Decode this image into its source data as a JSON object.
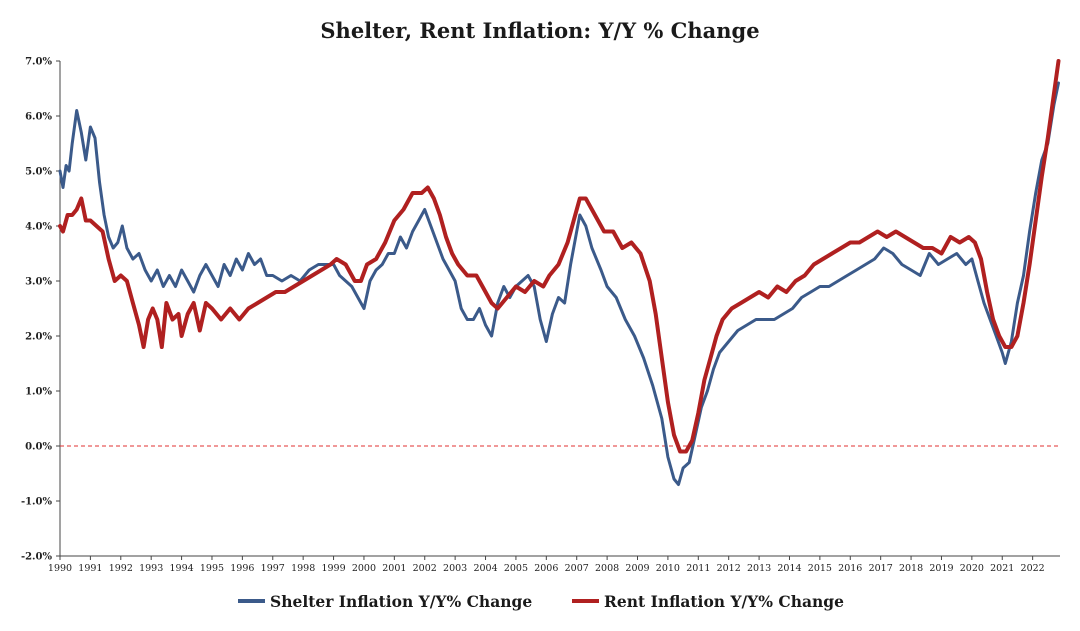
{
  "chart_data": {
    "type": "line",
    "title": "Shelter, Rent Inflation: Y/Y % Change",
    "xlabel": "",
    "ylabel": "",
    "xlim": [
      1990,
      2022.9
    ],
    "ylim": [
      -2.0,
      7.0
    ],
    "y_ticks": [
      7.0,
      6.0,
      5.0,
      4.0,
      3.0,
      2.0,
      1.0,
      0.0,
      -1.0,
      -2.0
    ],
    "y_tick_labels": [
      "7.0%",
      "6.0%",
      "5.0%",
      "4.0%",
      "3.0%",
      "2.0%",
      "1.0%",
      "0.0%",
      "-1.0%",
      "-2.0%"
    ],
    "x_ticks": [
      1990,
      1991,
      1992,
      1993,
      1994,
      1995,
      1996,
      1997,
      1998,
      1999,
      2000,
      2001,
      2002,
      2003,
      2004,
      2005,
      2006,
      2007,
      2008,
      2009,
      2010,
      2011,
      2012,
      2013,
      2014,
      2015,
      2016,
      2017,
      2018,
      2019,
      2020,
      2021,
      2022
    ],
    "x_tick_labels": [
      "1990",
      "1991",
      "1992",
      "1993",
      "1994",
      "1995",
      "1996",
      "1997",
      "1998",
      "1999",
      "2000",
      "2001",
      "2002",
      "2003",
      "2004",
      "2005",
      "2006",
      "2007",
      "2008",
      "2009",
      "2010",
      "2011",
      "2012",
      "2013",
      "2014",
      "2015",
      "2016",
      "2017",
      "2018",
      "2019",
      "2020",
      "2021",
      "2022"
    ],
    "reference_line": {
      "y": 0.0,
      "color": "#e03030",
      "style": "dashed"
    },
    "grid": false,
    "legend_position": "bottom-center",
    "series": [
      {
        "name": "Shelter Inflation Y/Y% Change",
        "color": "#3b5a8a",
        "points": [
          [
            1990.0,
            5.0
          ],
          [
            1990.1,
            4.7
          ],
          [
            1990.2,
            5.1
          ],
          [
            1990.3,
            5.0
          ],
          [
            1990.4,
            5.5
          ],
          [
            1990.55,
            6.1
          ],
          [
            1990.7,
            5.7
          ],
          [
            1990.85,
            5.2
          ],
          [
            1991.0,
            5.8
          ],
          [
            1991.15,
            5.6
          ],
          [
            1991.3,
            4.8
          ],
          [
            1991.45,
            4.2
          ],
          [
            1991.6,
            3.8
          ],
          [
            1991.75,
            3.6
          ],
          [
            1991.9,
            3.7
          ],
          [
            1992.05,
            4.0
          ],
          [
            1992.2,
            3.6
          ],
          [
            1992.4,
            3.4
          ],
          [
            1992.6,
            3.5
          ],
          [
            1992.8,
            3.2
          ],
          [
            1993.0,
            3.0
          ],
          [
            1993.2,
            3.2
          ],
          [
            1993.4,
            2.9
          ],
          [
            1993.6,
            3.1
          ],
          [
            1993.8,
            2.9
          ],
          [
            1994.0,
            3.2
          ],
          [
            1994.2,
            3.0
          ],
          [
            1994.4,
            2.8
          ],
          [
            1994.6,
            3.1
          ],
          [
            1994.8,
            3.3
          ],
          [
            1995.0,
            3.1
          ],
          [
            1995.2,
            2.9
          ],
          [
            1995.4,
            3.3
          ],
          [
            1995.6,
            3.1
          ],
          [
            1995.8,
            3.4
          ],
          [
            1996.0,
            3.2
          ],
          [
            1996.2,
            3.5
          ],
          [
            1996.4,
            3.3
          ],
          [
            1996.6,
            3.4
          ],
          [
            1996.8,
            3.1
          ],
          [
            1997.0,
            3.1
          ],
          [
            1997.3,
            3.0
          ],
          [
            1997.6,
            3.1
          ],
          [
            1997.9,
            3.0
          ],
          [
            1998.2,
            3.2
          ],
          [
            1998.5,
            3.3
          ],
          [
            1998.8,
            3.3
          ],
          [
            1999.0,
            3.3
          ],
          [
            1999.2,
            3.1
          ],
          [
            1999.4,
            3.0
          ],
          [
            1999.6,
            2.9
          ],
          [
            1999.8,
            2.7
          ],
          [
            2000.0,
            2.5
          ],
          [
            2000.2,
            3.0
          ],
          [
            2000.4,
            3.2
          ],
          [
            2000.6,
            3.3
          ],
          [
            2000.8,
            3.5
          ],
          [
            2001.0,
            3.5
          ],
          [
            2001.2,
            3.8
          ],
          [
            2001.4,
            3.6
          ],
          [
            2001.6,
            3.9
          ],
          [
            2001.8,
            4.1
          ],
          [
            2002.0,
            4.3
          ],
          [
            2002.2,
            4.0
          ],
          [
            2002.4,
            3.7
          ],
          [
            2002.6,
            3.4
          ],
          [
            2002.8,
            3.2
          ],
          [
            2003.0,
            3.0
          ],
          [
            2003.2,
            2.5
          ],
          [
            2003.4,
            2.3
          ],
          [
            2003.6,
            2.3
          ],
          [
            2003.8,
            2.5
          ],
          [
            2004.0,
            2.2
          ],
          [
            2004.2,
            2.0
          ],
          [
            2004.4,
            2.6
          ],
          [
            2004.6,
            2.9
          ],
          [
            2004.8,
            2.7
          ],
          [
            2005.0,
            2.9
          ],
          [
            2005.2,
            3.0
          ],
          [
            2005.4,
            3.1
          ],
          [
            2005.6,
            2.9
          ],
          [
            2005.8,
            2.3
          ],
          [
            2006.0,
            1.9
          ],
          [
            2006.2,
            2.4
          ],
          [
            2006.4,
            2.7
          ],
          [
            2006.6,
            2.6
          ],
          [
            2006.8,
            3.3
          ],
          [
            2007.0,
            3.9
          ],
          [
            2007.1,
            4.2
          ],
          [
            2007.3,
            4.0
          ],
          [
            2007.5,
            3.6
          ],
          [
            2007.8,
            3.2
          ],
          [
            2008.0,
            2.9
          ],
          [
            2008.3,
            2.7
          ],
          [
            2008.6,
            2.3
          ],
          [
            2008.9,
            2.0
          ],
          [
            2009.2,
            1.6
          ],
          [
            2009.5,
            1.1
          ],
          [
            2009.8,
            0.5
          ],
          [
            2010.0,
            -0.2
          ],
          [
            2010.2,
            -0.6
          ],
          [
            2010.35,
            -0.7
          ],
          [
            2010.5,
            -0.4
          ],
          [
            2010.7,
            -0.3
          ],
          [
            2010.9,
            0.2
          ],
          [
            2011.1,
            0.7
          ],
          [
            2011.3,
            1.0
          ],
          [
            2011.5,
            1.4
          ],
          [
            2011.7,
            1.7
          ],
          [
            2012.0,
            1.9
          ],
          [
            2012.3,
            2.1
          ],
          [
            2012.6,
            2.2
          ],
          [
            2012.9,
            2.3
          ],
          [
            2013.2,
            2.3
          ],
          [
            2013.5,
            2.3
          ],
          [
            2013.8,
            2.4
          ],
          [
            2014.1,
            2.5
          ],
          [
            2014.4,
            2.7
          ],
          [
            2014.7,
            2.8
          ],
          [
            2015.0,
            2.9
          ],
          [
            2015.3,
            2.9
          ],
          [
            2015.6,
            3.0
          ],
          [
            2015.9,
            3.1
          ],
          [
            2016.2,
            3.2
          ],
          [
            2016.5,
            3.3
          ],
          [
            2016.8,
            3.4
          ],
          [
            2017.1,
            3.6
          ],
          [
            2017.4,
            3.5
          ],
          [
            2017.7,
            3.3
          ],
          [
            2018.0,
            3.2
          ],
          [
            2018.3,
            3.1
          ],
          [
            2018.6,
            3.5
          ],
          [
            2018.9,
            3.3
          ],
          [
            2019.2,
            3.4
          ],
          [
            2019.5,
            3.5
          ],
          [
            2019.8,
            3.3
          ],
          [
            2020.0,
            3.4
          ],
          [
            2020.2,
            3.0
          ],
          [
            2020.4,
            2.6
          ],
          [
            2020.6,
            2.3
          ],
          [
            2020.8,
            2.0
          ],
          [
            2021.0,
            1.7
          ],
          [
            2021.1,
            1.5
          ],
          [
            2021.3,
            1.9
          ],
          [
            2021.5,
            2.6
          ],
          [
            2021.7,
            3.1
          ],
          [
            2021.9,
            3.9
          ],
          [
            2022.1,
            4.6
          ],
          [
            2022.3,
            5.2
          ],
          [
            2022.5,
            5.5
          ],
          [
            2022.7,
            6.2
          ],
          [
            2022.85,
            6.6
          ]
        ]
      },
      {
        "name": "Rent Inflation Y/Y% Change",
        "color": "#b02020",
        "points": [
          [
            1990.0,
            4.0
          ],
          [
            1990.1,
            3.9
          ],
          [
            1990.25,
            4.2
          ],
          [
            1990.4,
            4.2
          ],
          [
            1990.55,
            4.3
          ],
          [
            1990.7,
            4.5
          ],
          [
            1990.85,
            4.1
          ],
          [
            1991.0,
            4.1
          ],
          [
            1991.2,
            4.0
          ],
          [
            1991.4,
            3.9
          ],
          [
            1991.6,
            3.4
          ],
          [
            1991.8,
            3.0
          ],
          [
            1992.0,
            3.1
          ],
          [
            1992.2,
            3.0
          ],
          [
            1992.4,
            2.6
          ],
          [
            1992.6,
            2.2
          ],
          [
            1992.75,
            1.8
          ],
          [
            1992.9,
            2.3
          ],
          [
            1993.05,
            2.5
          ],
          [
            1993.2,
            2.3
          ],
          [
            1993.35,
            1.8
          ],
          [
            1993.5,
            2.6
          ],
          [
            1993.7,
            2.3
          ],
          [
            1993.9,
            2.4
          ],
          [
            1994.0,
            2.0
          ],
          [
            1994.2,
            2.4
          ],
          [
            1994.4,
            2.6
          ],
          [
            1994.6,
            2.1
          ],
          [
            1994.8,
            2.6
          ],
          [
            1995.0,
            2.5
          ],
          [
            1995.3,
            2.3
          ],
          [
            1995.6,
            2.5
          ],
          [
            1995.9,
            2.3
          ],
          [
            1996.2,
            2.5
          ],
          [
            1996.5,
            2.6
          ],
          [
            1996.8,
            2.7
          ],
          [
            1997.1,
            2.8
          ],
          [
            1997.4,
            2.8
          ],
          [
            1997.7,
            2.9
          ],
          [
            1998.0,
            3.0
          ],
          [
            1998.3,
            3.1
          ],
          [
            1998.6,
            3.2
          ],
          [
            1998.9,
            3.3
          ],
          [
            1999.1,
            3.4
          ],
          [
            1999.4,
            3.3
          ],
          [
            1999.7,
            3.0
          ],
          [
            1999.9,
            3.0
          ],
          [
            2000.1,
            3.3
          ],
          [
            2000.4,
            3.4
          ],
          [
            2000.7,
            3.7
          ],
          [
            2001.0,
            4.1
          ],
          [
            2001.3,
            4.3
          ],
          [
            2001.6,
            4.6
          ],
          [
            2001.9,
            4.6
          ],
          [
            2002.1,
            4.7
          ],
          [
            2002.3,
            4.5
          ],
          [
            2002.5,
            4.2
          ],
          [
            2002.7,
            3.8
          ],
          [
            2002.9,
            3.5
          ],
          [
            2003.1,
            3.3
          ],
          [
            2003.4,
            3.1
          ],
          [
            2003.7,
            3.1
          ],
          [
            2003.9,
            2.9
          ],
          [
            2004.2,
            2.6
          ],
          [
            2004.4,
            2.5
          ],
          [
            2004.7,
            2.7
          ],
          [
            2005.0,
            2.9
          ],
          [
            2005.3,
            2.8
          ],
          [
            2005.6,
            3.0
          ],
          [
            2005.9,
            2.9
          ],
          [
            2006.1,
            3.1
          ],
          [
            2006.4,
            3.3
          ],
          [
            2006.7,
            3.7
          ],
          [
            2006.9,
            4.1
          ],
          [
            2007.1,
            4.5
          ],
          [
            2007.3,
            4.5
          ],
          [
            2007.5,
            4.3
          ],
          [
            2007.7,
            4.1
          ],
          [
            2007.9,
            3.9
          ],
          [
            2008.2,
            3.9
          ],
          [
            2008.5,
            3.6
          ],
          [
            2008.8,
            3.7
          ],
          [
            2009.1,
            3.5
          ],
          [
            2009.4,
            3.0
          ],
          [
            2009.6,
            2.4
          ],
          [
            2009.8,
            1.6
          ],
          [
            2010.0,
            0.8
          ],
          [
            2010.2,
            0.2
          ],
          [
            2010.4,
            -0.1
          ],
          [
            2010.6,
            -0.1
          ],
          [
            2010.8,
            0.1
          ],
          [
            2011.0,
            0.6
          ],
          [
            2011.2,
            1.2
          ],
          [
            2011.4,
            1.6
          ],
          [
            2011.6,
            2.0
          ],
          [
            2011.8,
            2.3
          ],
          [
            2012.1,
            2.5
          ],
          [
            2012.4,
            2.6
          ],
          [
            2012.7,
            2.7
          ],
          [
            2013.0,
            2.8
          ],
          [
            2013.3,
            2.7
          ],
          [
            2013.6,
            2.9
          ],
          [
            2013.9,
            2.8
          ],
          [
            2014.2,
            3.0
          ],
          [
            2014.5,
            3.1
          ],
          [
            2014.8,
            3.3
          ],
          [
            2015.1,
            3.4
          ],
          [
            2015.4,
            3.5
          ],
          [
            2015.7,
            3.6
          ],
          [
            2016.0,
            3.7
          ],
          [
            2016.3,
            3.7
          ],
          [
            2016.6,
            3.8
          ],
          [
            2016.9,
            3.9
          ],
          [
            2017.2,
            3.8
          ],
          [
            2017.5,
            3.9
          ],
          [
            2017.8,
            3.8
          ],
          [
            2018.1,
            3.7
          ],
          [
            2018.4,
            3.6
          ],
          [
            2018.7,
            3.6
          ],
          [
            2019.0,
            3.5
          ],
          [
            2019.3,
            3.8
          ],
          [
            2019.6,
            3.7
          ],
          [
            2019.9,
            3.8
          ],
          [
            2020.1,
            3.7
          ],
          [
            2020.3,
            3.4
          ],
          [
            2020.5,
            2.8
          ],
          [
            2020.7,
            2.3
          ],
          [
            2020.9,
            2.0
          ],
          [
            2021.1,
            1.8
          ],
          [
            2021.3,
            1.8
          ],
          [
            2021.5,
            2.0
          ],
          [
            2021.7,
            2.6
          ],
          [
            2021.9,
            3.3
          ],
          [
            2022.1,
            4.1
          ],
          [
            2022.3,
            4.9
          ],
          [
            2022.5,
            5.6
          ],
          [
            2022.7,
            6.4
          ],
          [
            2022.85,
            7.0
          ]
        ]
      }
    ]
  }
}
